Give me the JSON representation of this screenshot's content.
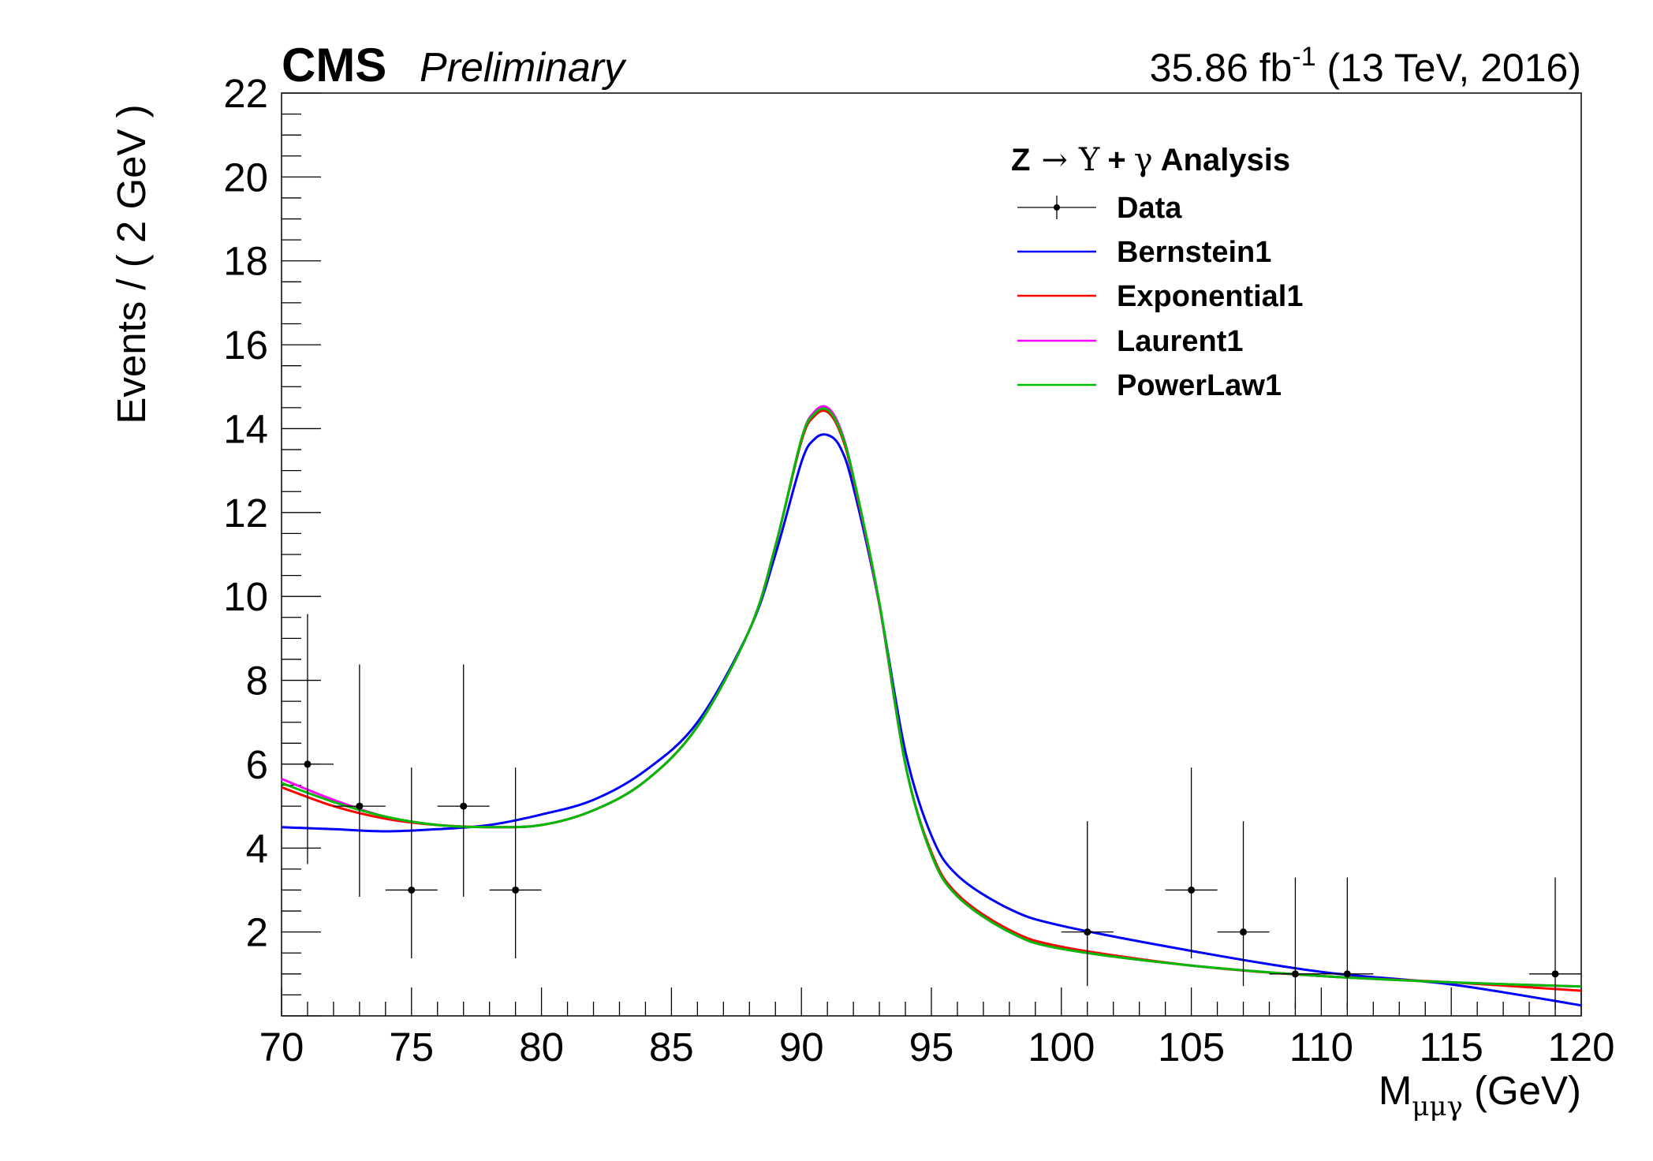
{
  "header": {
    "experiment": "CMS",
    "status": "Preliminary",
    "lumi_value": "35.86 fb",
    "lumi_exponent": "-1",
    "lumi_suffix": " (13 TeV, 2016)"
  },
  "chart_data": {
    "type": "line",
    "title": "",
    "xlabel": "M",
    "xlabel_sub": "μμγ",
    "xlabel_unit": " (GeV)",
    "ylabel": "Events / ( 2 GeV )",
    "xlim": [
      70,
      120
    ],
    "ylim": [
      0,
      22
    ],
    "x_ticks": [
      70,
      75,
      80,
      85,
      90,
      95,
      100,
      105,
      110,
      115,
      120
    ],
    "y_ticks": [
      2,
      4,
      6,
      8,
      10,
      12,
      14,
      16,
      18,
      20,
      22
    ],
    "grid": false,
    "legend": {
      "title_parts": [
        "Z",
        "→",
        "Υ",
        "+",
        "γ",
        "Analysis"
      ],
      "placement": "top-right"
    },
    "data_points": {
      "name": "Data",
      "color": "#000000",
      "x": [
        71,
        73,
        75,
        77,
        79,
        101,
        105,
        107,
        109,
        111,
        119
      ],
      "y": [
        6,
        5,
        3,
        5,
        3,
        2,
        3,
        2,
        1,
        1,
        1
      ],
      "yerr_low": [
        2.38,
        2.16,
        1.63,
        2.16,
        1.63,
        1.29,
        1.63,
        1.29,
        0.83,
        0.83,
        0.83
      ],
      "yerr_high": [
        3.58,
        3.38,
        2.92,
        3.38,
        2.92,
        2.64,
        2.92,
        2.64,
        2.3,
        2.3,
        2.3
      ],
      "xerr": 1
    },
    "series": [
      {
        "name": "Bernstein1",
        "color": "#0000ff",
        "x": [
          70,
          72,
          74,
          76,
          78,
          80,
          82,
          84,
          86,
          88,
          89,
          90,
          90.5,
          91,
          91.5,
          92,
          93,
          94,
          95,
          96,
          98,
          100,
          105,
          110,
          115,
          120
        ],
        "y": [
          4.5,
          4.45,
          4.4,
          4.45,
          4.55,
          4.8,
          5.15,
          5.85,
          7.0,
          9.2,
          11.0,
          13.2,
          13.75,
          13.85,
          13.55,
          12.6,
          9.8,
          6.3,
          4.3,
          3.35,
          2.55,
          2.15,
          1.55,
          1.05,
          0.75,
          0.25
        ]
      },
      {
        "name": "Exponential1",
        "color": "#ff0000",
        "x": [
          70,
          72,
          74,
          76,
          78,
          80,
          82,
          84,
          86,
          88,
          89,
          90,
          90.5,
          91,
          91.5,
          92,
          93,
          94,
          95,
          96,
          98,
          100,
          105,
          110,
          115,
          120
        ],
        "y": [
          5.45,
          5.0,
          4.7,
          4.55,
          4.5,
          4.55,
          4.9,
          5.6,
          6.9,
          9.2,
          11.2,
          13.7,
          14.3,
          14.4,
          13.9,
          12.8,
          9.8,
          6.0,
          3.9,
          2.9,
          2.05,
          1.65,
          1.2,
          0.95,
          0.8,
          0.6
        ]
      },
      {
        "name": "Laurent1",
        "color": "#ff00ff",
        "x": [
          70,
          72,
          74,
          76,
          78,
          80,
          82,
          84,
          86,
          88,
          89,
          90,
          90.5,
          91,
          91.5,
          92,
          93,
          94,
          95,
          96,
          98,
          100,
          105,
          110,
          115,
          120
        ],
        "y": [
          5.65,
          5.15,
          4.75,
          4.55,
          4.5,
          4.55,
          4.9,
          5.6,
          6.9,
          9.2,
          11.2,
          13.75,
          14.4,
          14.5,
          14.0,
          12.85,
          9.8,
          6.0,
          3.85,
          2.85,
          2.0,
          1.6,
          1.2,
          0.95,
          0.8,
          0.7
        ]
      },
      {
        "name": "PowerLaw1",
        "color": "#00bb00",
        "x": [
          70,
          72,
          74,
          76,
          78,
          80,
          82,
          84,
          86,
          88,
          89,
          90,
          90.5,
          91,
          91.5,
          92,
          93,
          94,
          95,
          96,
          98,
          100,
          105,
          110,
          115,
          120
        ],
        "y": [
          5.55,
          5.1,
          4.75,
          4.55,
          4.5,
          4.55,
          4.9,
          5.6,
          6.9,
          9.2,
          11.2,
          13.75,
          14.35,
          14.45,
          13.95,
          12.85,
          9.85,
          6.0,
          3.85,
          2.85,
          2.0,
          1.6,
          1.2,
          0.95,
          0.8,
          0.7
        ]
      }
    ]
  }
}
